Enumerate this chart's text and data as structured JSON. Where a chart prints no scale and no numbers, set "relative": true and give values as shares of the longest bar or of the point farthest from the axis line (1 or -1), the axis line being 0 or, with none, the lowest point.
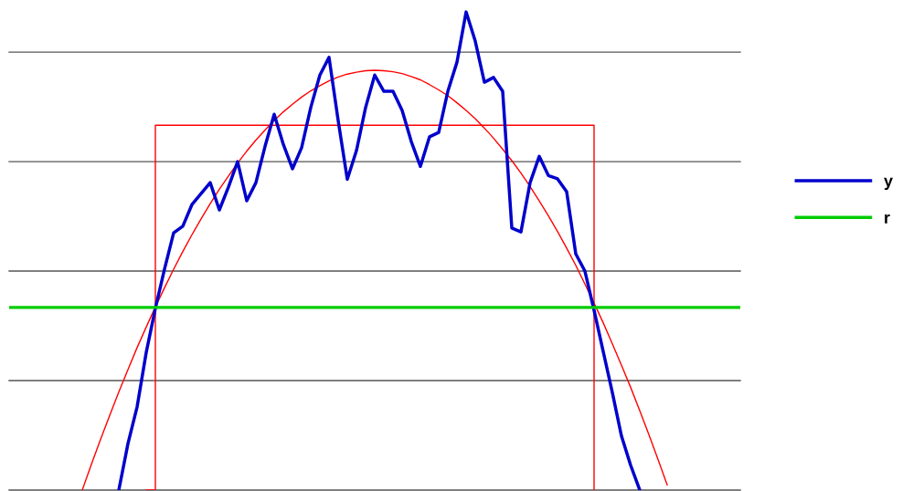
{
  "chart_data": {
    "type": "line",
    "relative": true,
    "legend": "right",
    "grid": false,
    "categories": [
      null,
      null,
      null,
      null,
      null,
      null,
      null,
      null,
      null,
      null,
      null,
      null,
      null,
      null,
      null,
      null,
      null,
      null,
      null,
      null,
      null,
      null,
      null,
      null,
      null,
      null,
      null,
      null,
      null,
      null,
      null,
      null,
      null,
      null,
      null,
      null,
      null,
      null,
      null,
      null,
      null,
      null,
      null,
      null,
      null,
      null,
      null,
      null,
      null,
      null,
      null,
      null,
      null,
      null,
      null,
      null,
      null,
      null,
      null,
      null,
      null,
      null,
      null,
      null,
      null,
      null,
      null,
      null,
      null,
      null,
      null,
      null,
      null,
      null,
      null,
      null,
      null,
      null,
      null,
      null,
      null
    ],
    "series": [
      {
        "color": "#ff0000",
        "values": [
          null,
          null,
          null,
          null,
          null,
          null,
          null,
          null,
          0,
          0.054,
          0.106,
          0.156,
          0.205,
          0.252,
          0.298,
          0.341,
          0.383,
          0.423,
          0.462,
          0.499,
          0.534,
          0.567,
          0.599,
          0.629,
          0.657,
          0.684,
          0.709,
          0.732,
          0.753,
          0.773,
          0.791,
          0.807,
          0.822,
          0.835,
          0.846,
          0.856,
          0.864,
          0.87,
          0.874,
          0.877,
          0.878,
          0.877,
          0.875,
          0.871,
          0.865,
          0.858,
          0.848,
          0.837,
          0.825,
          0.81,
          0.794,
          0.777,
          0.757,
          0.736,
          0.713,
          0.689,
          0.663,
          0.635,
          0.605,
          0.574,
          0.541,
          0.506,
          0.47,
          0.431,
          0.391,
          0.35,
          0.306,
          0.261,
          0.215,
          0.166,
          0.116,
          0.064,
          0.011,
          null,
          null,
          null,
          null,
          null,
          null,
          null,
          null
        ]
      },
      {
        "type": "step",
        "color": "#ff0000",
        "values": [
          null,
          null,
          null,
          null,
          null,
          null,
          null,
          null,
          null,
          null,
          null,
          null,
          null,
          null,
          null,
          0,
          0.763,
          0.763,
          0.763,
          0.763,
          0.763,
          0.763,
          0.763,
          0.763,
          0.763,
          0.763,
          0.763,
          0.763,
          0.763,
          0.763,
          0.763,
          0.763,
          0.763,
          0.763,
          0.763,
          0.763,
          0.763,
          0.763,
          0.763,
          0.763,
          0.763,
          0.763,
          0.763,
          0.763,
          0.763,
          0.763,
          0.763,
          0.763,
          0.763,
          0.763,
          0.763,
          0.763,
          0.763,
          0.763,
          0.763,
          0.763,
          0.763,
          0.763,
          0.763,
          0.763,
          0.763,
          0.763,
          0.763,
          0.763,
          0,
          null,
          null,
          null,
          null,
          null,
          null,
          null,
          null,
          null,
          null,
          null,
          null,
          null,
          null,
          null,
          null
        ]
      },
      {
        "name": "y",
        "color": "#0000cc",
        "values": [
          null,
          null,
          null,
          null,
          null,
          null,
          null,
          null,
          null,
          null,
          null,
          null,
          0,
          0.097,
          0.174,
          0.288,
          0.38,
          0.462,
          0.538,
          0.552,
          0.597,
          0.62,
          0.643,
          0.586,
          0.634,
          0.687,
          0.605,
          0.643,
          0.719,
          0.786,
          0.723,
          0.672,
          0.716,
          0.8,
          0.868,
          0.905,
          0.773,
          0.65,
          0.71,
          0.8,
          0.868,
          0.834,
          0.834,
          0.794,
          0.729,
          0.677,
          0.739,
          0.748,
          0.834,
          0.895,
          1,
          0.939,
          0.853,
          0.863,
          0.834,
          0.548,
          0.54,
          0.643,
          0.698,
          0.658,
          0.651,
          0.624,
          0.494,
          0.458,
          0.376,
          0.29,
          0.204,
          0.113,
          0.052,
          0,
          null,
          null,
          null,
          null,
          null,
          null,
          null,
          null,
          null,
          null,
          null
        ]
      },
      {
        "name": "r",
        "color": "#00cc00",
        "values": [
          0.382,
          0.382,
          0.382,
          0.382,
          0.382,
          0.382,
          0.382,
          0.382,
          0.382,
          0.382,
          0.382,
          0.382,
          0.382,
          0.382,
          0.382,
          0.382,
          0.382,
          0.382,
          0.382,
          0.382,
          0.382,
          0.382,
          0.382,
          0.382,
          0.382,
          0.382,
          0.382,
          0.382,
          0.382,
          0.382,
          0.382,
          0.382,
          0.382,
          0.382,
          0.382,
          0.382,
          0.382,
          0.382,
          0.382,
          0.382,
          0.382,
          0.382,
          0.382,
          0.382,
          0.382,
          0.382,
          0.382,
          0.382,
          0.382,
          0.382,
          0.382,
          0.382,
          0.382,
          0.382,
          0.382,
          0.382,
          0.382,
          0.382,
          0.382,
          0.382,
          0.382,
          0.382,
          0.382,
          0.382,
          0.382,
          0.382,
          0.382,
          0.382,
          0.382,
          0.382,
          0.382,
          0.382,
          0.382,
          0.382,
          0.382,
          0.382,
          0.382,
          0.382,
          0.382,
          0.382,
          0.382
        ]
      }
    ],
    "ref_lines": [
      {
        "axis": "y",
        "value": 0.916,
        "color": "#555555"
      },
      {
        "axis": "y",
        "value": 0.687,
        "color": "#555555"
      },
      {
        "axis": "y",
        "value": 0.458,
        "color": "#555555"
      },
      {
        "axis": "y",
        "value": 0.229,
        "color": "#555555"
      },
      {
        "axis": "y",
        "value": 0,
        "color": "#555555"
      }
    ]
  }
}
